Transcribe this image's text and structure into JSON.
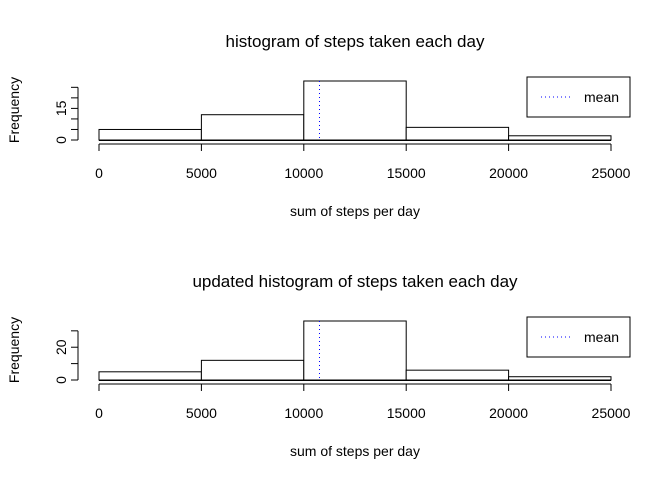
{
  "chart_data": [
    {
      "type": "bar",
      "title": "histogram of steps taken each day",
      "xlabel": "sum of steps per day",
      "ylabel": "Frequency",
      "bins": [
        {
          "from": 0,
          "to": 5000,
          "count": 5
        },
        {
          "from": 5000,
          "to": 10000,
          "count": 12
        },
        {
          "from": 10000,
          "to": 15000,
          "count": 28
        },
        {
          "from": 15000,
          "to": 20000,
          "count": 6
        },
        {
          "from": 20000,
          "to": 25000,
          "count": 2
        }
      ],
      "xlim": [
        0,
        25000
      ],
      "ylim": [
        0,
        28
      ],
      "x_ticks": [
        0,
        5000,
        10000,
        15000,
        20000,
        25000
      ],
      "y_ticks": [
        0,
        5,
        10,
        15,
        20,
        25
      ],
      "y_tick_labels": {
        "0": "0",
        "15": "15"
      },
      "mean": 10766,
      "legend": {
        "label": "mean",
        "position": "top-right"
      },
      "colors": {
        "bar_fill": "#ffffff",
        "bar_stroke": "#000000",
        "mean_line": "#0000ff"
      }
    },
    {
      "type": "bar",
      "title": "updated histogram of steps taken each day",
      "xlabel": "sum of steps per day",
      "ylabel": "Frequency",
      "bins": [
        {
          "from": 0,
          "to": 5000,
          "count": 5
        },
        {
          "from": 5000,
          "to": 10000,
          "count": 12
        },
        {
          "from": 10000,
          "to": 15000,
          "count": 36
        },
        {
          "from": 15000,
          "to": 20000,
          "count": 6
        },
        {
          "from": 20000,
          "to": 25000,
          "count": 2
        }
      ],
      "xlim": [
        0,
        25000
      ],
      "ylim": [
        0,
        36
      ],
      "x_ticks": [
        0,
        5000,
        10000,
        15000,
        20000,
        25000
      ],
      "y_ticks": [
        0,
        10,
        20,
        30
      ],
      "y_tick_labels": {
        "0": "0",
        "20": "20"
      },
      "mean": 10766,
      "legend": {
        "label": "mean",
        "position": "top-right"
      },
      "colors": {
        "bar_fill": "#ffffff",
        "bar_stroke": "#000000",
        "mean_line": "#0000ff"
      }
    }
  ]
}
